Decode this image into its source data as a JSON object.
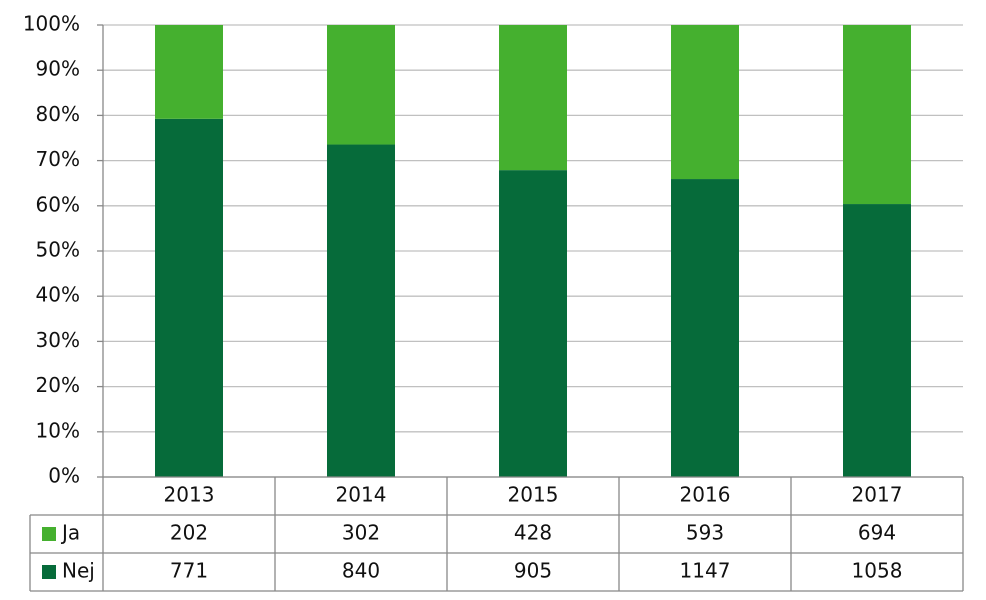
{
  "chart_data": {
    "type": "bar",
    "stacking": "percent",
    "categories": [
      "2013",
      "2014",
      "2015",
      "2016",
      "2017"
    ],
    "series": [
      {
        "name": "Nej",
        "color": "#066b3a",
        "values": [
          771,
          840,
          905,
          1147,
          1058
        ]
      },
      {
        "name": "Ja",
        "color": "#45b02f",
        "values": [
          202,
          302,
          428,
          593,
          694
        ]
      }
    ],
    "ylim": [
      0,
      100
    ],
    "yticks": [
      {
        "value": 0,
        "label": "0%"
      },
      {
        "value": 10,
        "label": "10%"
      },
      {
        "value": 20,
        "label": "20%"
      },
      {
        "value": 30,
        "label": "30%"
      },
      {
        "value": 40,
        "label": "40%"
      },
      {
        "value": 50,
        "label": "50%"
      },
      {
        "value": 60,
        "label": "60%"
      },
      {
        "value": 70,
        "label": "70%"
      },
      {
        "value": 80,
        "label": "80%"
      },
      {
        "value": 90,
        "label": "90%"
      },
      {
        "value": 100,
        "label": "100%"
      }
    ],
    "grid": true,
    "data_table": true
  }
}
